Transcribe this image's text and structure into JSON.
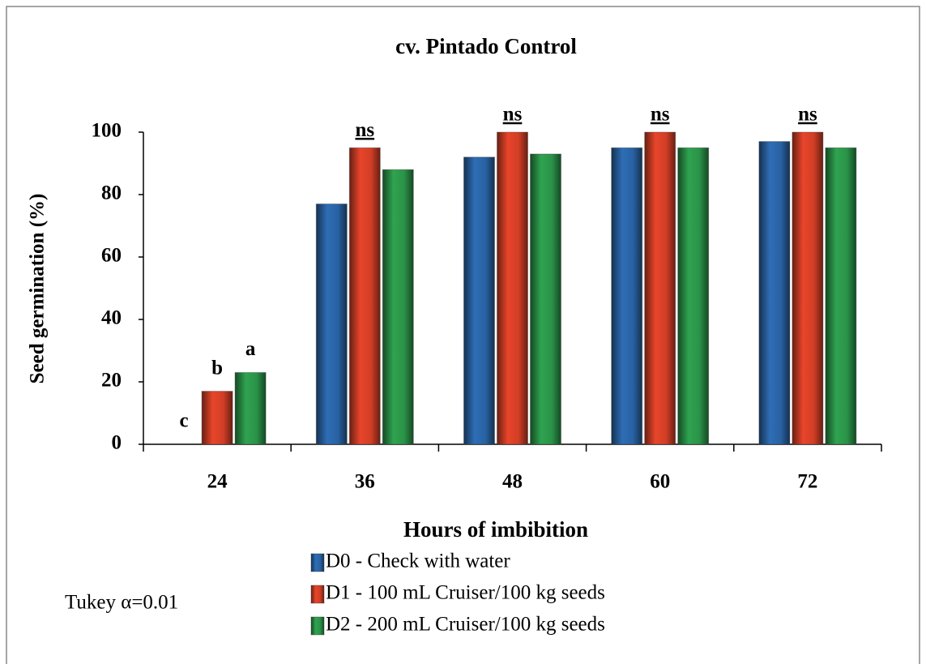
{
  "chart_data": {
    "type": "bar",
    "title": "cv. Pintado Control",
    "x_label": "Hours of imbibition",
    "y_label": "Seed germination (%)",
    "categories": [
      "24",
      "36",
      "48",
      "60",
      "72"
    ],
    "series": [
      {
        "name": "D0 - Check with water",
        "color": "#2e6db5",
        "values": [
          0,
          77,
          92,
          95,
          97
        ],
        "letters": [
          "c",
          null,
          null,
          null,
          null
        ]
      },
      {
        "name": "D1 - 100 mL Cruiser/100 kg seeds",
        "color": "#e8452a",
        "values": [
          17,
          95,
          100,
          100,
          100
        ],
        "letters": [
          "b",
          null,
          null,
          null,
          null
        ]
      },
      {
        "name": "D2 - 200 mL Cruiser/100 kg seeds",
        "color": "#2fa350",
        "values": [
          23,
          88,
          93,
          95,
          95
        ],
        "letters": [
          "a",
          null,
          null,
          null,
          null
        ]
      }
    ],
    "group_labels": [
      null,
      "ns",
      "ns",
      "ns",
      "ns"
    ],
    "note": "Tukey α=0.01",
    "ylim": [
      0,
      100
    ],
    "yticks": [
      0,
      20,
      40,
      60,
      80,
      100
    ],
    "grid": false
  }
}
